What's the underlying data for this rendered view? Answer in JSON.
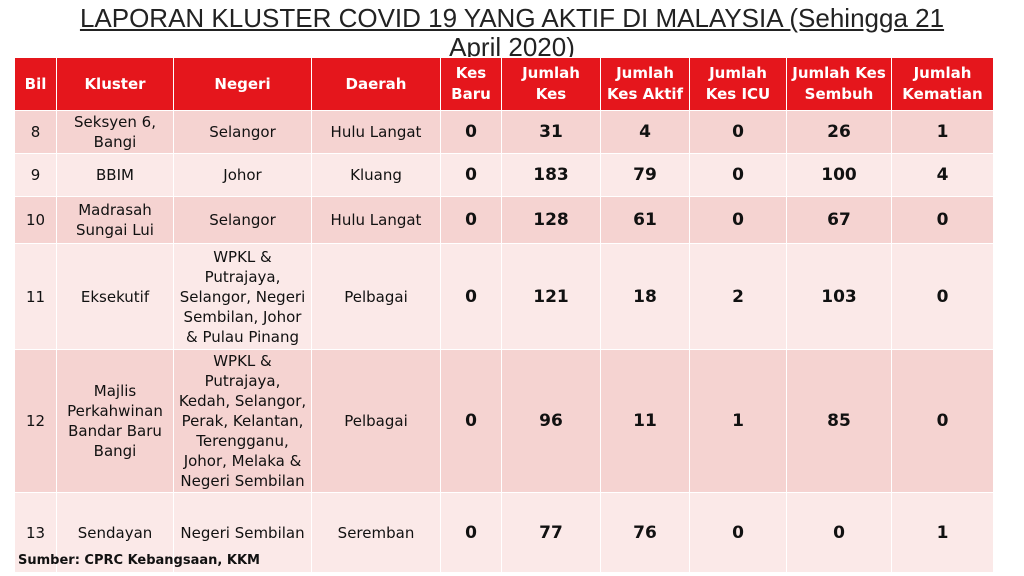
{
  "header": {
    "title": "LAPORAN KLUSTER COVID 19 YANG AKTIF DI MALAYSIA (Sehingga 21 April 2020)"
  },
  "table": {
    "columns": [
      "Bil",
      "Kluster",
      "Negeri",
      "Daerah",
      "Kes Baru",
      "Jumlah Kes",
      "Jumlah Kes Aktif",
      "Jumlah Kes ICU",
      "Jumlah Kes Sembuh",
      "Jumlah Kematian"
    ],
    "rows": [
      [
        8,
        "Seksyen 6, Bangi",
        "Selangor",
        "Hulu Langat",
        0,
        31,
        4,
        0,
        26,
        1
      ],
      [
        9,
        "BBIM",
        "Johor",
        "Kluang",
        0,
        183,
        79,
        0,
        100,
        4
      ],
      [
        10,
        "Madrasah Sungai Lui",
        "Selangor",
        "Hulu Langat",
        0,
        128,
        61,
        0,
        67,
        0
      ],
      [
        11,
        "Eksekutif",
        "WPKL & Putrajaya, Selangor, Negeri Sembilan, Johor & Pulau Pinang",
        "Pelbagai",
        0,
        121,
        18,
        2,
        103,
        0
      ],
      [
        12,
        "Majlis Perkahwinan Bandar Baru Bangi",
        "WPKL & Putrajaya, Kedah, Selangor, Perak, Kelantan, Terengganu, Johor, Melaka & Negeri Sembilan",
        "Pelbagai",
        0,
        96,
        11,
        1,
        85,
        0
      ],
      [
        13,
        "Sendayan",
        "Negeri Sembilan",
        "Seremban",
        0,
        77,
        76,
        0,
        0,
        1
      ]
    ]
  },
  "footer": {
    "source": "Sumber: CPRC Kebangsaan, KKM"
  }
}
